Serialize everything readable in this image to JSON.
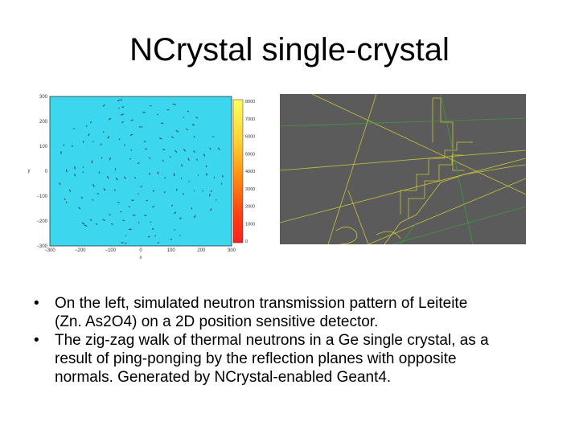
{
  "slide": {
    "title": "NCrystal single-crystal"
  },
  "left_figure": {
    "type": "heatmap",
    "x_ticks": [
      "−300",
      "−200",
      "−100",
      "0",
      "100",
      "200",
      "300"
    ],
    "y_ticks": [
      "300",
      "200",
      "100",
      "0",
      "−100",
      "−200",
      "−300"
    ],
    "xlabel": "x",
    "ylabel": "y",
    "colorbar_ticks": [
      "8000",
      "7000",
      "6000",
      "5000",
      "4000",
      "3000",
      "2000",
      "1000",
      "0"
    ],
    "background_color": "#3cd7ee",
    "colormap": [
      "#ffff60",
      "#ffd030",
      "#ff8a10",
      "#ff4010",
      "#ff2020"
    ]
  },
  "right_figure": {
    "description_color": "#5b5b5b",
    "track_color": "#c8c23a",
    "secondary_track_color": "#3e9a3e"
  },
  "bullets": [
    {
      "marker": "•",
      "lines": [
        "On the left, simulated neutron transmission pattern of Leiteite",
        "(Zn. As2O4) on a 2D position sensitive detector."
      ]
    },
    {
      "marker": "•",
      "lines": [
        "The zig-zag walk of thermal neutrons in a Ge single crystal, as a",
        "result of ping-ponging by the reflection planes with opposite",
        "normals. Generated by NCrystal-enabled Geant4."
      ]
    }
  ]
}
